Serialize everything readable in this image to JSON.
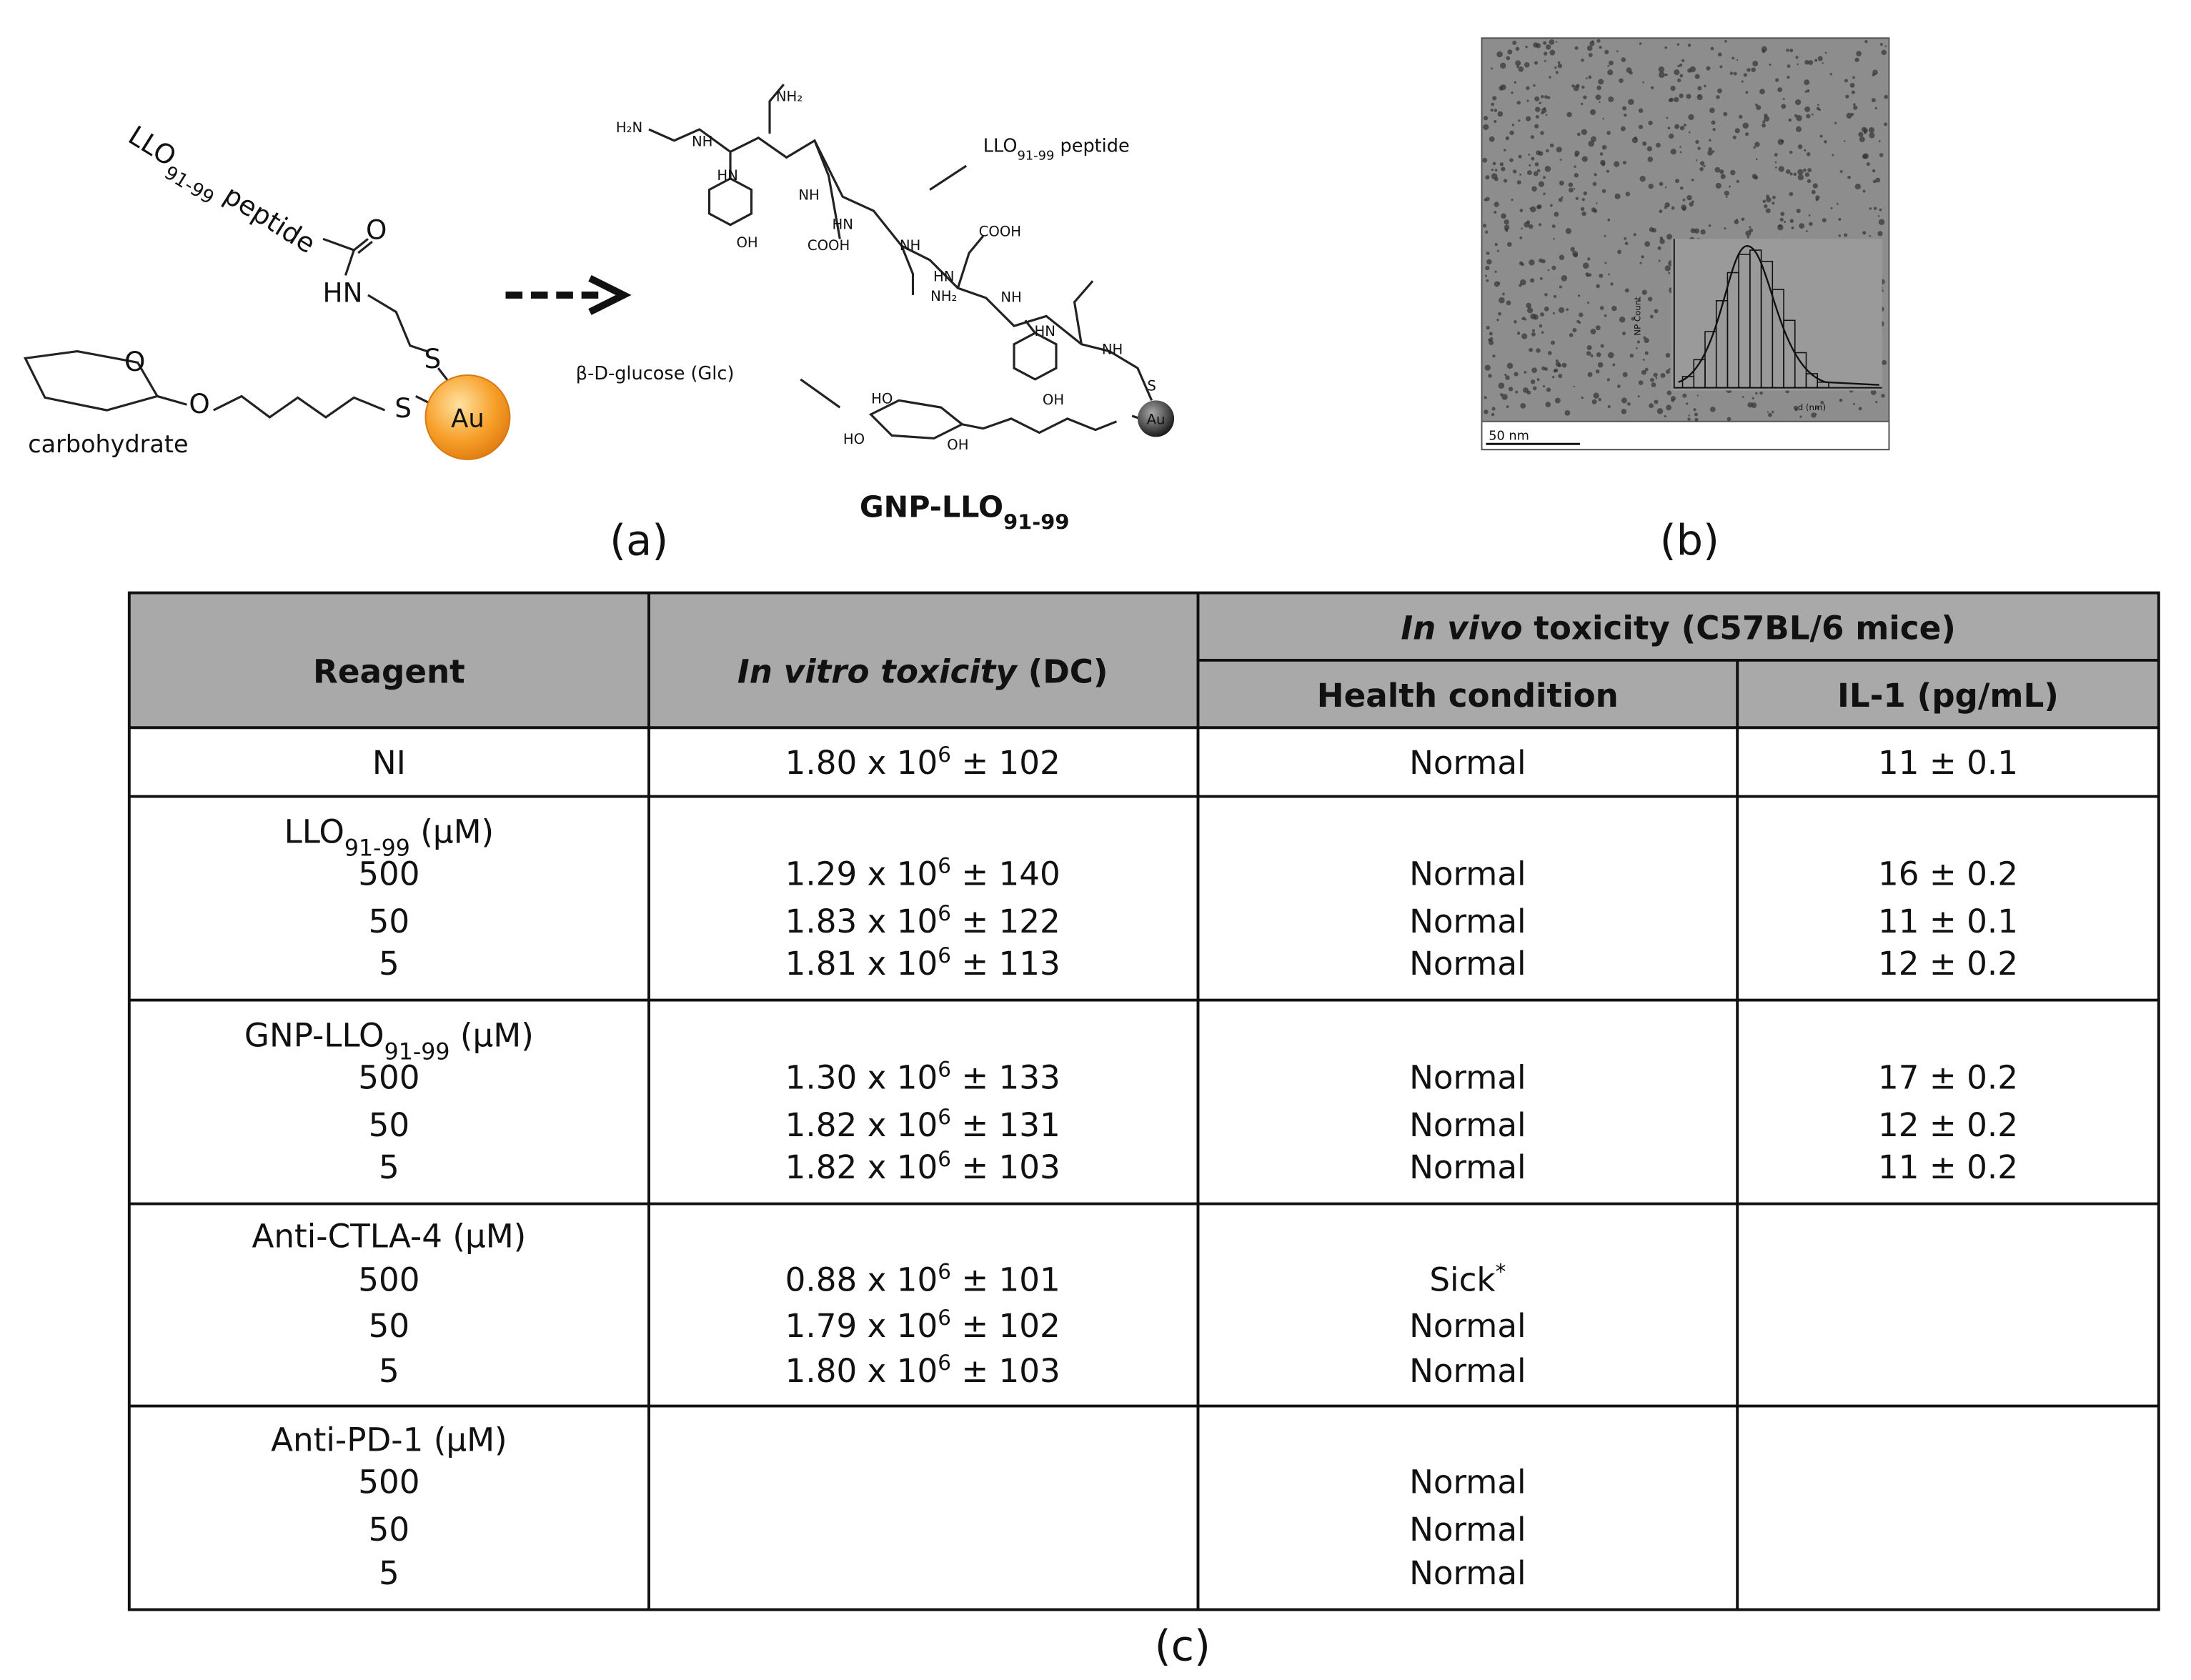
{
  "figure": {
    "panel_labels": [
      "(a)",
      "(b)",
      "(c)"
    ],
    "scheme_left": {
      "peptide": {
        "main": "LLO",
        "sub": "91-99",
        "tail": " peptide"
      },
      "atoms": [
        "O",
        "HN",
        "S",
        "O",
        "S"
      ],
      "gold": "Au",
      "carbohydrate": "carbohydrate"
    },
    "scheme_right": {
      "peptide": {
        "main": "LLO",
        "sub": "91-99",
        "tail": " peptide"
      },
      "glucose": "β-D-glucose (Glc)",
      "product": {
        "main": "GNP-LLO",
        "sub": "91-99"
      },
      "atoms": [
        "H₂N",
        "NH",
        "NH₂",
        "HN",
        "OH",
        "COOH",
        "NH",
        "HN",
        "NH",
        "COOH",
        "HN",
        "NH₂",
        "NH",
        "HN",
        "NH",
        "OH",
        "S",
        "Au",
        "HO",
        "HO",
        "OH"
      ]
    },
    "tem": {
      "scale_bar": "50 nm",
      "y_label": "NP Count",
      "x_label": "d (nm)"
    },
    "table": {
      "header": {
        "reagent": "Reagent",
        "invitro": {
          "italic": "In vitro toxicity",
          "rest": " (DC)"
        },
        "invivo": {
          "italic": "In vivo",
          "rest": " toxicity (C57BL/6 mice)"
        },
        "health": "Health condition",
        "il1": "IL-1 (pg/mL)"
      },
      "groups": [
        {
          "name": {
            "main": "NI"
          },
          "rows": [
            {
              "invitro": {
                "coef": "1.80 x 10",
                "exp": "6",
                "err": " ± 102"
              },
              "health": "Normal",
              "il1": "11 ± 0.1"
            }
          ]
        },
        {
          "name": {
            "main": "LLO",
            "sub": "91-99",
            "unit": " (μM)"
          },
          "rows": [
            {
              "dose": "500",
              "invitro": {
                "coef": "1.29 x 10",
                "exp": "6",
                "err": " ± 140"
              },
              "health": "Normal",
              "il1": "16 ± 0.2"
            },
            {
              "dose": "50",
              "invitro": {
                "coef": "1.83 x 10",
                "exp": "6",
                "err": " ± 122"
              },
              "health": "Normal",
              "il1": "11 ± 0.1"
            },
            {
              "dose": "5",
              "invitro": {
                "coef": "1.81 x 10",
                "exp": "6",
                "err": " ± 113"
              },
              "health": "Normal",
              "il1": "12 ± 0.2"
            }
          ]
        },
        {
          "name": {
            "main": "GNP-LLO",
            "sub": "91-99",
            "unit": " (μM)"
          },
          "rows": [
            {
              "dose": "500",
              "invitro": {
                "coef": "1.30 x 10",
                "exp": "6",
                "err": " ± 133"
              },
              "health": "Normal",
              "il1": "17 ± 0.2"
            },
            {
              "dose": "50",
              "invitro": {
                "coef": "1.82 x 10",
                "exp": "6",
                "err": " ± 131"
              },
              "health": "Normal",
              "il1": "12 ± 0.2"
            },
            {
              "dose": "5",
              "invitro": {
                "coef": "1.82 x 10",
                "exp": "6",
                "err": " ± 103"
              },
              "health": "Normal",
              "il1": "11 ± 0.2"
            }
          ]
        },
        {
          "name": {
            "main": "Anti-CTLA-4",
            "unit": " (μM)"
          },
          "rows": [
            {
              "dose": "500",
              "invitro": {
                "coef": "0.88 x 10",
                "exp": "6",
                "err": " ± 101"
              },
              "health": "Sick",
              "health_mark": "*"
            },
            {
              "dose": "50",
              "invitro": {
                "coef": "1.79 x 10",
                "exp": "6",
                "err": " ± 102"
              },
              "health": "Normal"
            },
            {
              "dose": "5",
              "invitro": {
                "coef": "1.80 x 10",
                "exp": "6",
                "err": " ± 103"
              },
              "health": "Normal"
            }
          ]
        },
        {
          "name": {
            "main": "Anti-PD-1",
            "unit": " (μM)"
          },
          "rows": [
            {
              "dose": "500",
              "health": "Normal"
            },
            {
              "dose": "50",
              "health": "Normal"
            },
            {
              "dose": "5",
              "health": "Normal"
            }
          ]
        }
      ]
    }
  }
}
